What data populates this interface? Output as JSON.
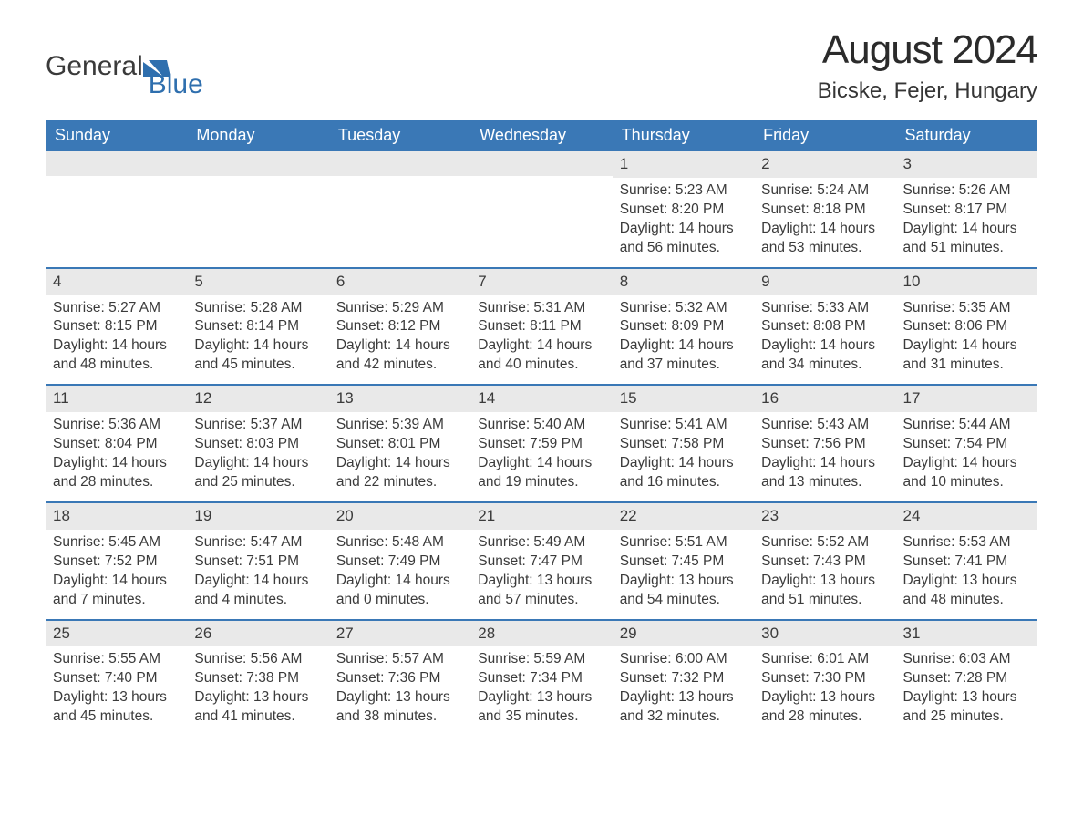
{
  "brand": {
    "word1": "General",
    "word2": "Blue",
    "accent_color": "#2f6fae"
  },
  "title": "August 2024",
  "location": "Bicske, Fejer, Hungary",
  "colors": {
    "header_bg": "#3a78b6",
    "header_text": "#ffffff",
    "daynum_bg": "#e9e9e9",
    "divider": "#3a78b6",
    "body_text": "#3b3b3b",
    "page_bg": "#ffffff"
  },
  "day_names": [
    "Sunday",
    "Monday",
    "Tuesday",
    "Wednesday",
    "Thursday",
    "Friday",
    "Saturday"
  ],
  "weeks": [
    [
      null,
      null,
      null,
      null,
      {
        "n": "1",
        "sunrise": "5:23 AM",
        "sunset": "8:20 PM",
        "daylight": "14 hours and 56 minutes."
      },
      {
        "n": "2",
        "sunrise": "5:24 AM",
        "sunset": "8:18 PM",
        "daylight": "14 hours and 53 minutes."
      },
      {
        "n": "3",
        "sunrise": "5:26 AM",
        "sunset": "8:17 PM",
        "daylight": "14 hours and 51 minutes."
      }
    ],
    [
      {
        "n": "4",
        "sunrise": "5:27 AM",
        "sunset": "8:15 PM",
        "daylight": "14 hours and 48 minutes."
      },
      {
        "n": "5",
        "sunrise": "5:28 AM",
        "sunset": "8:14 PM",
        "daylight": "14 hours and 45 minutes."
      },
      {
        "n": "6",
        "sunrise": "5:29 AM",
        "sunset": "8:12 PM",
        "daylight": "14 hours and 42 minutes."
      },
      {
        "n": "7",
        "sunrise": "5:31 AM",
        "sunset": "8:11 PM",
        "daylight": "14 hours and 40 minutes."
      },
      {
        "n": "8",
        "sunrise": "5:32 AM",
        "sunset": "8:09 PM",
        "daylight": "14 hours and 37 minutes."
      },
      {
        "n": "9",
        "sunrise": "5:33 AM",
        "sunset": "8:08 PM",
        "daylight": "14 hours and 34 minutes."
      },
      {
        "n": "10",
        "sunrise": "5:35 AM",
        "sunset": "8:06 PM",
        "daylight": "14 hours and 31 minutes."
      }
    ],
    [
      {
        "n": "11",
        "sunrise": "5:36 AM",
        "sunset": "8:04 PM",
        "daylight": "14 hours and 28 minutes."
      },
      {
        "n": "12",
        "sunrise": "5:37 AM",
        "sunset": "8:03 PM",
        "daylight": "14 hours and 25 minutes."
      },
      {
        "n": "13",
        "sunrise": "5:39 AM",
        "sunset": "8:01 PM",
        "daylight": "14 hours and 22 minutes."
      },
      {
        "n": "14",
        "sunrise": "5:40 AM",
        "sunset": "7:59 PM",
        "daylight": "14 hours and 19 minutes."
      },
      {
        "n": "15",
        "sunrise": "5:41 AM",
        "sunset": "7:58 PM",
        "daylight": "14 hours and 16 minutes."
      },
      {
        "n": "16",
        "sunrise": "5:43 AM",
        "sunset": "7:56 PM",
        "daylight": "14 hours and 13 minutes."
      },
      {
        "n": "17",
        "sunrise": "5:44 AM",
        "sunset": "7:54 PM",
        "daylight": "14 hours and 10 minutes."
      }
    ],
    [
      {
        "n": "18",
        "sunrise": "5:45 AM",
        "sunset": "7:52 PM",
        "daylight": "14 hours and 7 minutes."
      },
      {
        "n": "19",
        "sunrise": "5:47 AM",
        "sunset": "7:51 PM",
        "daylight": "14 hours and 4 minutes."
      },
      {
        "n": "20",
        "sunrise": "5:48 AM",
        "sunset": "7:49 PM",
        "daylight": "14 hours and 0 minutes."
      },
      {
        "n": "21",
        "sunrise": "5:49 AM",
        "sunset": "7:47 PM",
        "daylight": "13 hours and 57 minutes."
      },
      {
        "n": "22",
        "sunrise": "5:51 AM",
        "sunset": "7:45 PM",
        "daylight": "13 hours and 54 minutes."
      },
      {
        "n": "23",
        "sunrise": "5:52 AM",
        "sunset": "7:43 PM",
        "daylight": "13 hours and 51 minutes."
      },
      {
        "n": "24",
        "sunrise": "5:53 AM",
        "sunset": "7:41 PM",
        "daylight": "13 hours and 48 minutes."
      }
    ],
    [
      {
        "n": "25",
        "sunrise": "5:55 AM",
        "sunset": "7:40 PM",
        "daylight": "13 hours and 45 minutes."
      },
      {
        "n": "26",
        "sunrise": "5:56 AM",
        "sunset": "7:38 PM",
        "daylight": "13 hours and 41 minutes."
      },
      {
        "n": "27",
        "sunrise": "5:57 AM",
        "sunset": "7:36 PM",
        "daylight": "13 hours and 38 minutes."
      },
      {
        "n": "28",
        "sunrise": "5:59 AM",
        "sunset": "7:34 PM",
        "daylight": "13 hours and 35 minutes."
      },
      {
        "n": "29",
        "sunrise": "6:00 AM",
        "sunset": "7:32 PM",
        "daylight": "13 hours and 32 minutes."
      },
      {
        "n": "30",
        "sunrise": "6:01 AM",
        "sunset": "7:30 PM",
        "daylight": "13 hours and 28 minutes."
      },
      {
        "n": "31",
        "sunrise": "6:03 AM",
        "sunset": "7:28 PM",
        "daylight": "13 hours and 25 minutes."
      }
    ]
  ],
  "labels": {
    "sunrise": "Sunrise: ",
    "sunset": "Sunset: ",
    "daylight": "Daylight: "
  }
}
